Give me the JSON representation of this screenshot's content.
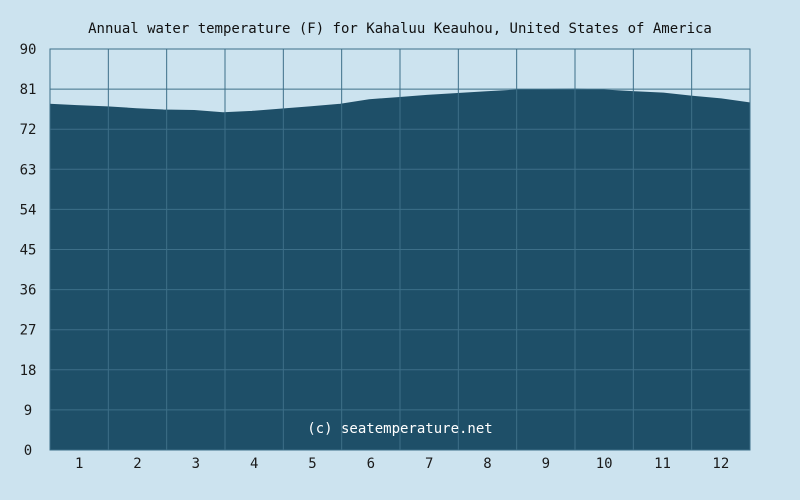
{
  "chart_data": {
    "type": "area",
    "title": "Annual water temperature (F) for Kahaluu Keauhou, United States of America",
    "xlabel": "",
    "ylabel": "",
    "ylim": [
      0,
      90
    ],
    "yticks": [
      "0",
      "9",
      "18",
      "27",
      "36",
      "45",
      "54",
      "63",
      "72",
      "81",
      "90"
    ],
    "categories": [
      "1",
      "2",
      "3",
      "4",
      "5",
      "6",
      "7",
      "8",
      "9",
      "10",
      "11",
      "12"
    ],
    "xlim": [
      1,
      365
    ],
    "grid": true,
    "x": [
      1,
      15,
      31,
      46,
      60,
      76,
      91,
      106,
      121,
      136,
      152,
      167,
      182,
      197,
      213,
      228,
      244,
      259,
      274,
      289,
      305,
      320,
      335,
      350,
      365
    ],
    "y": [
      77.6,
      77.3,
      77.0,
      76.6,
      76.3,
      76.2,
      75.7,
      76.0,
      76.5,
      77.0,
      77.6,
      78.6,
      79.1,
      79.6,
      80.0,
      80.4,
      80.8,
      80.9,
      81.0,
      80.8,
      80.4,
      80.1,
      79.4,
      78.8,
      77.9
    ],
    "watermark": "(c) seatemperature.net",
    "colors": {
      "background": "#cce3ef",
      "plot_background": "#cce3ef",
      "fill": "#1e4f68",
      "grid": "#3d6f88",
      "text": "#1a1a1a"
    }
  }
}
